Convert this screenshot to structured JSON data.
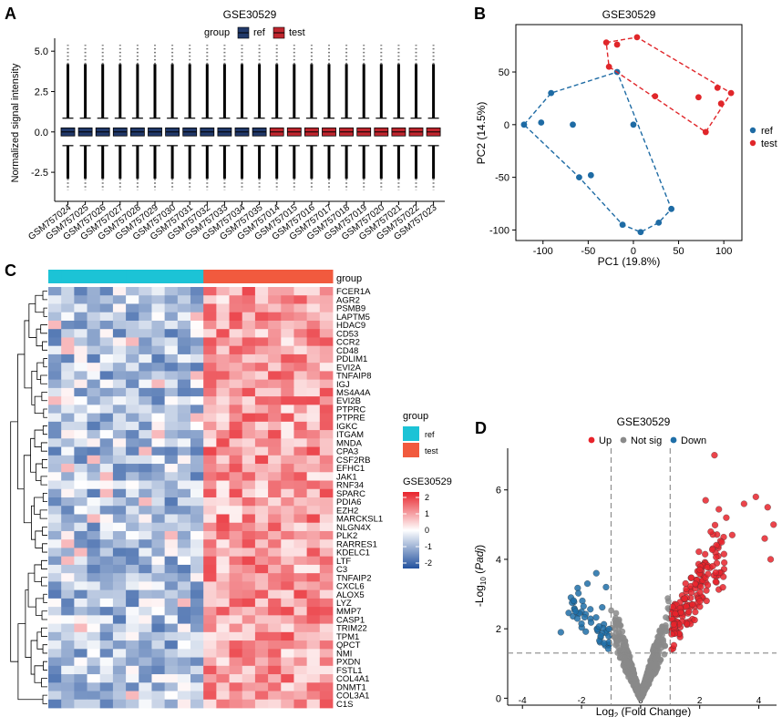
{
  "panels": {
    "A": "A",
    "B": "B",
    "C": "C",
    "D": "D"
  },
  "chart_data": [
    {
      "id": "A",
      "type": "boxplot",
      "title": "GSE30529",
      "ylabel": "Normalized signal intensity",
      "ylim": [
        -4.3,
        5.8
      ],
      "yticks": [
        -2.5,
        0.0,
        2.5,
        5.0
      ],
      "ytick_labels": [
        "-2.5",
        "0.0",
        "2.5",
        "5.0"
      ],
      "legend": {
        "title": "group",
        "entries": [
          "ref",
          "test"
        ]
      },
      "samples": [
        "GSM757024",
        "GSM757025",
        "GSM757026",
        "GSM757027",
        "GSM757028",
        "GSM757029",
        "GSM757030",
        "GSM757031",
        "GSM757032",
        "GSM757033",
        "GSM757034",
        "GSM757035",
        "GSM757014",
        "GSM757015",
        "GSM757016",
        "GSM757017",
        "GSM757018",
        "GSM757019",
        "GSM757020",
        "GSM757021",
        "GSM757022",
        "GSM757023"
      ],
      "groups": [
        "ref",
        "ref",
        "ref",
        "ref",
        "ref",
        "ref",
        "ref",
        "ref",
        "ref",
        "ref",
        "ref",
        "ref",
        "test",
        "test",
        "test",
        "test",
        "test",
        "test",
        "test",
        "test",
        "test",
        "test"
      ],
      "box": {
        "q1": -0.25,
        "median": 0.0,
        "q3": 0.25,
        "whisker_low": -0.85,
        "whisker_high": 0.85,
        "outlier_min": -3.6,
        "outlier_max": 5.4
      },
      "colors": {
        "ref": "#21396a",
        "test": "#c0262e"
      }
    },
    {
      "id": "B",
      "type": "scatter",
      "title": "GSE30529",
      "xlabel": "PC1 (19.8%)",
      "ylabel": "PC2 (14.5%)",
      "xlim": [
        -130,
        120
      ],
      "ylim": [
        -110,
        95
      ],
      "xticks": [
        -100,
        -50,
        0,
        50,
        100
      ],
      "yticks": [
        -100,
        -50,
        0,
        50
      ],
      "legend": [
        "ref",
        "test"
      ],
      "series": [
        {
          "name": "ref",
          "color": "#1e6ba4",
          "points": [
            [
              -121,
              0
            ],
            [
              -102,
              2
            ],
            [
              -91,
              30
            ],
            [
              -67,
              0
            ],
            [
              -60,
              -50
            ],
            [
              -47,
              -48
            ],
            [
              -18,
              50
            ],
            [
              0,
              0
            ],
            [
              -12,
              -95
            ],
            [
              8,
              -102
            ],
            [
              28,
              -93
            ],
            [
              42,
              -80
            ]
          ],
          "hull": [
            [
              -121,
              0
            ],
            [
              -91,
              30
            ],
            [
              -18,
              50
            ],
            [
              42,
              -80
            ],
            [
              28,
              -93
            ],
            [
              8,
              -102
            ],
            [
              -12,
              -95
            ],
            [
              -60,
              -50
            ]
          ]
        },
        {
          "name": "test",
          "color": "#e0262a",
          "points": [
            [
              -30,
              78
            ],
            [
              -27,
              55
            ],
            [
              -18,
              76
            ],
            [
              4,
              83
            ],
            [
              24,
              27
            ],
            [
              72,
              26
            ],
            [
              93,
              35
            ],
            [
              97,
              20
            ],
            [
              108,
              30
            ],
            [
              80,
              -7
            ]
          ],
          "hull": [
            [
              -30,
              78
            ],
            [
              4,
              83
            ],
            [
              108,
              30
            ],
            [
              80,
              -7
            ],
            [
              -27,
              55
            ]
          ]
        }
      ]
    },
    {
      "id": "C",
      "type": "heatmap",
      "group_label": "group",
      "groups": [
        "ref",
        "ref",
        "ref",
        "ref",
        "ref",
        "ref",
        "ref",
        "ref",
        "ref",
        "ref",
        "ref",
        "ref",
        "test",
        "test",
        "test",
        "test",
        "test",
        "test",
        "test",
        "test",
        "test",
        "test"
      ],
      "legend_group": {
        "title": "group",
        "entries": [
          "ref",
          "test"
        ],
        "colors": [
          "#1cc3d6",
          "#f15a3e"
        ]
      },
      "legend_scale": {
        "title": "GSE30529",
        "ticks": [
          2,
          1,
          0,
          -1,
          -2
        ]
      },
      "genes": [
        "FCER1A",
        "AGR2",
        "PSMB9",
        "LAPTM5",
        "HDAC9",
        "CD53",
        "CCR2",
        "CD48",
        "PDLIM1",
        "EVI2A",
        "TNFAIP8",
        "IGJ",
        "MS4A4A",
        "EVI2B",
        "PTPRC",
        "PTPRE",
        "IGKC",
        "ITGAM",
        "MNDA",
        "CPA3",
        "CSF2RB",
        "EFHC1",
        "JAK1",
        "RNF34",
        "SPARC",
        "PDIA6",
        "EZH2",
        "MARCKSL1",
        "NLGN4X",
        "PLK2",
        "RARRES1",
        "KDELC1",
        "LTF",
        "C3",
        "TNFAIP2",
        "CXCL6",
        "ALOX5",
        "LYZ",
        "MMP7",
        "CASP1",
        "TRIM22",
        "TPM1",
        "QPCT",
        "NMI",
        "PXDN",
        "FSTL1",
        "COL4A1",
        "DNMT1",
        "COL3A1",
        "C1S"
      ]
    },
    {
      "id": "D",
      "type": "scatter",
      "title": "GSE30529",
      "xlabel_base": "Log",
      "xlabel_sub": "2",
      "xlabel_rest": " (Fold Change)",
      "ylabel_prefix": "-Log",
      "ylabel_sub": "10",
      "ylabel_paren_open": " (",
      "ylabel_italic": "Padj",
      "ylabel_paren_close": ")",
      "xlim": [
        -4.5,
        4.6
      ],
      "ylim": [
        -0.2,
        7.2
      ],
      "xticks": [
        -4,
        -2,
        0,
        2,
        4
      ],
      "yticks": [
        0,
        2,
        4,
        6
      ],
      "fc_threshold": 1,
      "p_threshold": 1.3,
      "legend": [
        {
          "label": "Up",
          "color": "#e8232b"
        },
        {
          "label": "Not sig",
          "color": "#8a8a8a"
        },
        {
          "label": "Down",
          "color": "#1f6fa8"
        }
      ]
    }
  ]
}
